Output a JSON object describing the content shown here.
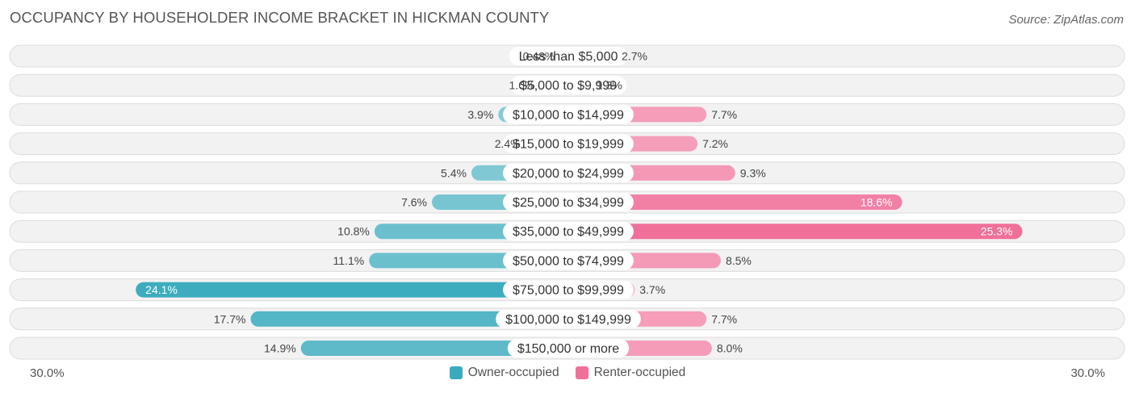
{
  "title": "OCCUPANCY BY HOUSEHOLDER INCOME BRACKET IN HICKMAN COUNTY",
  "source": "Source: ZipAtlas.com",
  "axis": {
    "left_label": "30.0%",
    "right_label": "30.0%",
    "max": 30.0
  },
  "legend": {
    "owner": {
      "label": "Owner-occupied",
      "color": "#3aabbd"
    },
    "renter": {
      "label": "Renter-occupied",
      "color": "#f07099"
    }
  },
  "chart_data": {
    "type": "bar",
    "orientation": "horizontal-diverging",
    "title": "OCCUPANCY BY HOUSEHOLDER INCOME BRACKET IN HICKMAN COUNTY",
    "xlim": [
      -30.0,
      30.0
    ],
    "categories": [
      "Less than $5,000",
      "$5,000 to $9,999",
      "$10,000 to $14,999",
      "$15,000 to $19,999",
      "$20,000 to $24,999",
      "$25,000 to $34,999",
      "$35,000 to $49,999",
      "$50,000 to $74,999",
      "$75,000 to $99,999",
      "$100,000 to $149,999",
      "$150,000 or more"
    ],
    "series": [
      {
        "name": "Owner-occupied",
        "side": "left",
        "values": [
          0.48,
          1.6,
          3.9,
          2.4,
          5.4,
          7.6,
          10.8,
          11.1,
          24.1,
          17.7,
          14.9
        ],
        "labels": [
          "0.48%",
          "1.6%",
          "3.9%",
          "2.4%",
          "5.4%",
          "7.6%",
          "10.8%",
          "11.1%",
          "24.1%",
          "17.7%",
          "14.9%"
        ]
      },
      {
        "name": "Renter-occupied",
        "side": "right",
        "values": [
          2.7,
          1.3,
          7.7,
          7.2,
          9.3,
          18.6,
          25.3,
          8.5,
          3.7,
          7.7,
          8.0
        ],
        "labels": [
          "2.7%",
          "1.3%",
          "7.7%",
          "7.2%",
          "9.3%",
          "18.6%",
          "25.3%",
          "8.5%",
          "3.7%",
          "7.7%",
          "8.0%"
        ]
      }
    ]
  }
}
